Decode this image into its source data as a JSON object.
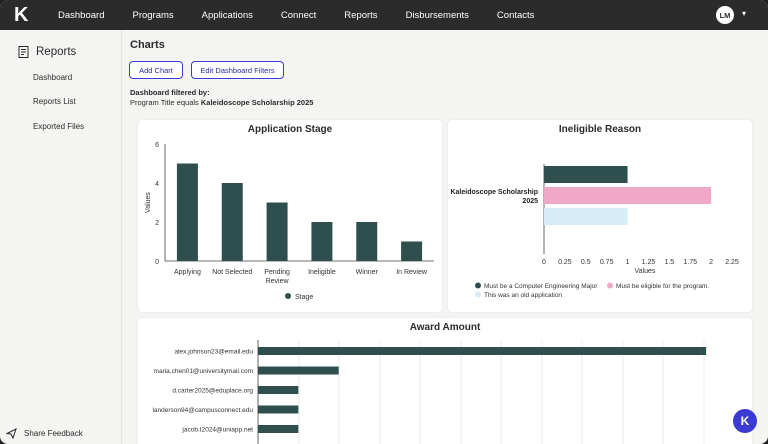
{
  "app": {
    "logo_text": "K"
  },
  "nav": [
    "Dashboard",
    "Programs",
    "Applications",
    "Connect",
    "Reports",
    "Disbursements",
    "Contacts"
  ],
  "user": {
    "initials": "LM"
  },
  "sidebar": {
    "title": "Reports",
    "items": [
      "Dashboard",
      "Reports List",
      "Exported Files"
    ],
    "feedback": "Share Feedback"
  },
  "page": {
    "title": "Charts",
    "add_chart": "Add Chart",
    "edit_filters": "Edit Dashboard Filters",
    "filter_heading": "Dashboard filtered by:",
    "filter_prefix": "Program Title equals",
    "filter_value": "Kaleidoscope Scholarship 2025"
  },
  "colors": {
    "bar": "#2f4f4f",
    "pink": "#f0a8c8",
    "lightblue": "#d6ecf8",
    "accent": "#3b3bd4"
  },
  "chart_data": [
    {
      "type": "bar",
      "title": "Application Stage",
      "categories": [
        "Applying",
        "Not Selected",
        "Pending Review",
        "Ineligible",
        "Winner",
        "In Review"
      ],
      "values": [
        5,
        4,
        3,
        2,
        2,
        1
      ],
      "ylabel": "Values",
      "ylim": [
        0,
        6
      ],
      "yticks": [
        0,
        2,
        4,
        6
      ],
      "legend": [
        "Stage"
      ]
    },
    {
      "type": "bar",
      "orientation": "horizontal",
      "title": "Ineligible Reason",
      "categories": [
        "Kaleidoscope Scholarship 2025"
      ],
      "series": [
        {
          "name": "Must be a Computer Engineering Major",
          "values": [
            1
          ],
          "color": "#2f4f4f"
        },
        {
          "name": "Must be eligible for the program.",
          "values": [
            2
          ],
          "color": "#f0a8c8"
        },
        {
          "name": "This was an old application",
          "values": [
            1
          ],
          "color": "#d6ecf8"
        }
      ],
      "xlabel": "Values",
      "xlim": [
        0,
        2.25
      ],
      "xticks": [
        "0",
        "0.25",
        "0.5",
        "0.75",
        "1",
        "1.25",
        "1.5",
        "1.75",
        "2",
        "2.25"
      ]
    },
    {
      "type": "bar",
      "orientation": "horizontal",
      "title": "Award Amount",
      "categories": [
        "alex.johnson23@email.edu",
        "maria.chen01@universitymail.com",
        "d.carter2025@eduplace.org",
        "landerson94@campusconnect.edu",
        "jacob.t2024@uniapp.net"
      ],
      "values": [
        10,
        1.8,
        0.9,
        0.9,
        0.9
      ]
    }
  ],
  "help": {
    "label": "K"
  }
}
